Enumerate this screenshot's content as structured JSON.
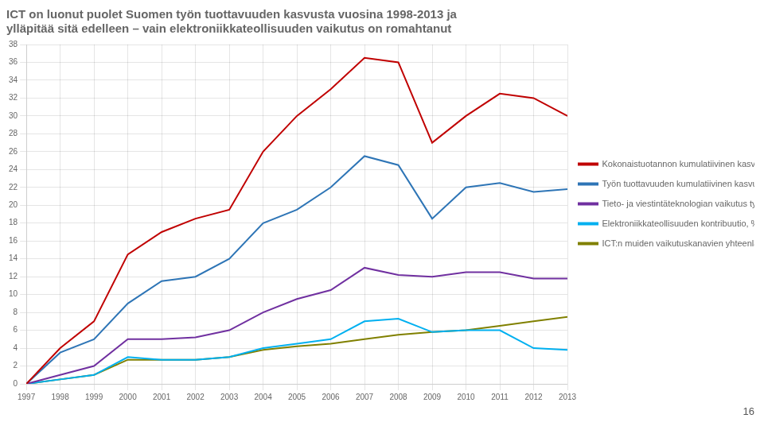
{
  "chart_data": {
    "type": "line",
    "title": [
      "ICT on luonut puolet Suomen työn tuottavuuden kasvusta vuosina 1998-2013 ja",
      "ylläpitää sitä edelleen – vain elektroniikkateollisuuden vaikutus on romahtanut"
    ],
    "x": [
      1997,
      1998,
      1999,
      2000,
      2001,
      2002,
      2003,
      2004,
      2005,
      2006,
      2007,
      2008,
      2009,
      2010,
      2011,
      2012,
      2013
    ],
    "series": [
      {
        "name": "Kokonaistuotannon kumulatiivinen kasvu, %",
        "color": "#C00000",
        "values": [
          0,
          4,
          7,
          14.5,
          17,
          18.5,
          19.5,
          26,
          30,
          33,
          36.5,
          36,
          27,
          30,
          32.5,
          32,
          30
        ]
      },
      {
        "name": "Työn tuottavuuden kumulatiivinen kasvu, %",
        "color": "#2E75B6",
        "values": [
          0,
          3.5,
          5,
          9,
          11.5,
          12,
          14,
          18,
          19.5,
          22,
          25.5,
          24.5,
          18.5,
          22,
          22.5,
          21.5,
          21.8
        ]
      },
      {
        "name": "Tieto- ja viestintäteknologian vaikutus työn tuottavuuden kasvuun, %-yksikköä",
        "color": "#7030A0",
        "values": [
          0,
          1,
          2,
          5,
          5,
          5.2,
          6,
          8,
          9.5,
          10.5,
          13,
          12.2,
          12,
          12.5,
          12.5,
          11.8,
          11.8
        ]
      },
      {
        "name": "Elektroniikkateollisuuden kontribuutio, %-yksikköä",
        "color": "#00B0F0",
        "values": [
          0,
          0.5,
          1,
          3,
          2.7,
          2.7,
          3,
          4,
          4.5,
          5,
          7,
          7.3,
          5.8,
          6,
          6,
          4,
          3.8
        ]
      },
      {
        "name": "ICT:n muiden vaikutuskanavien yhteenlaskettu kontribuutio, %-yksikköä",
        "color": "#808000",
        "values": [
          0,
          0.5,
          1,
          2.7,
          2.7,
          2.7,
          3,
          3.8,
          4.2,
          4.5,
          5,
          5.5,
          5.8,
          6,
          6.5,
          7,
          7.5
        ]
      }
    ],
    "xlim": [
      1997,
      2013
    ],
    "xticks": [
      1997,
      1998,
      1999,
      2000,
      2001,
      2002,
      2003,
      2004,
      2005,
      2006,
      2007,
      2008,
      2009,
      2010,
      2011,
      2012,
      2013
    ],
    "ylim": [
      0,
      38
    ],
    "yticks": [
      0,
      2,
      4,
      6,
      8,
      10,
      12,
      14,
      16,
      18,
      20,
      22,
      24,
      26,
      28,
      30,
      32,
      34,
      36,
      38
    ],
    "grid": true,
    "legend": "right",
    "annotations": [
      "16"
    ]
  }
}
